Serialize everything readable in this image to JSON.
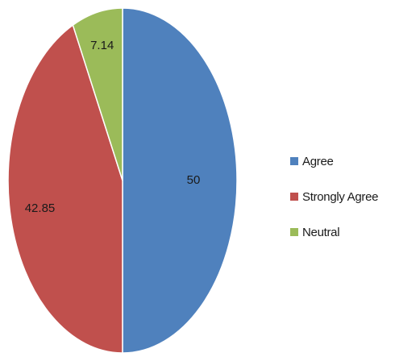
{
  "chart_data": {
    "type": "pie",
    "title": "",
    "slices": [
      {
        "label": "Agree",
        "value": 50,
        "value_label": "50",
        "color": "#4f81bd"
      },
      {
        "label": "Strongly Agree",
        "value": 42.85,
        "value_label": "42.85",
        "color": "#c0504d"
      },
      {
        "label": "Neutral",
        "value": 7.14,
        "value_label": "7.14",
        "color": "#9bbb59"
      }
    ],
    "legend_position": "right",
    "start_angle": "12 o'clock",
    "direction": "clockwise"
  }
}
